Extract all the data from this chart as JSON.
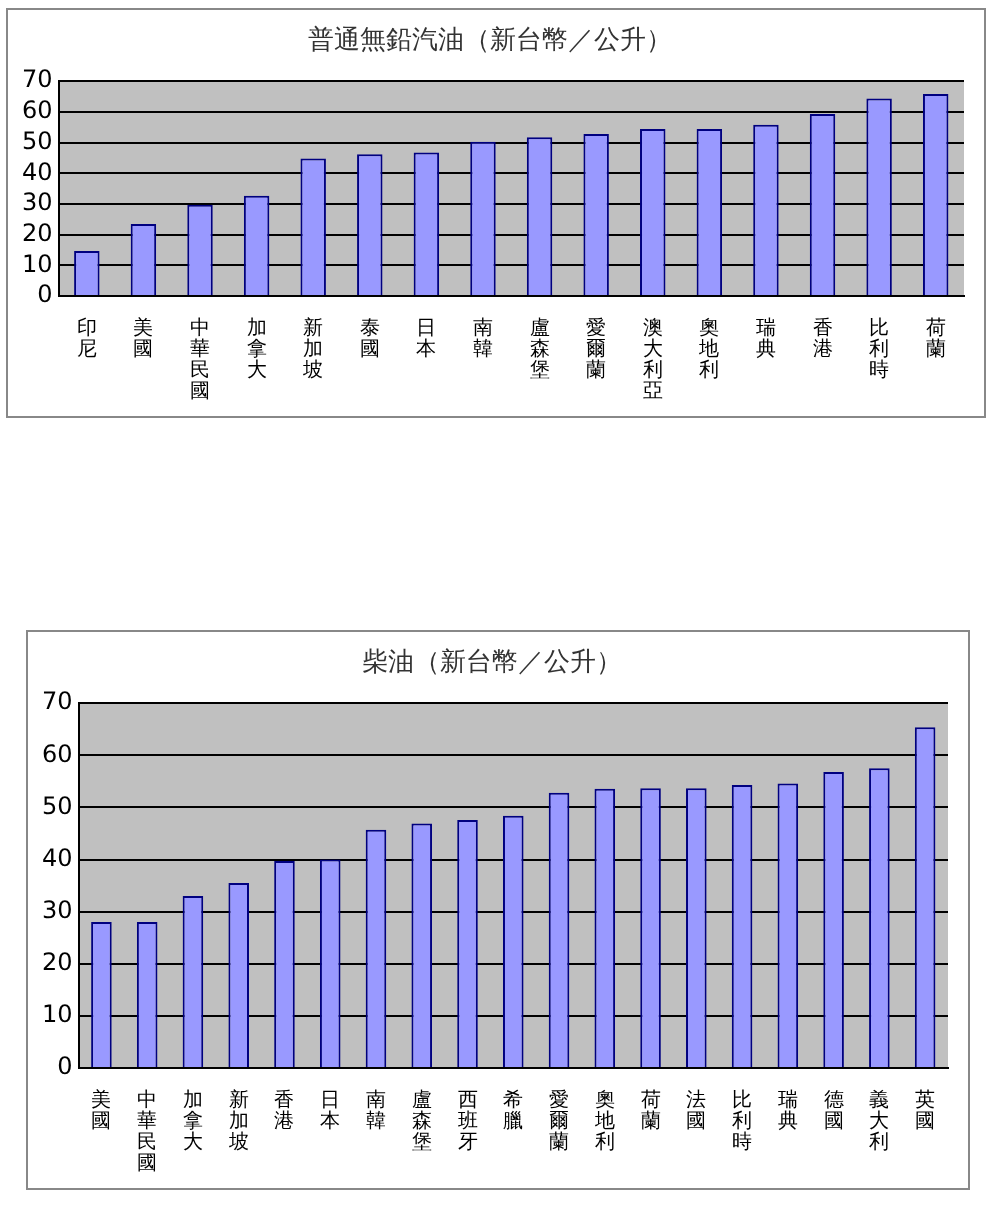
{
  "chart_data": [
    {
      "type": "bar",
      "title": "普通無鉛汽油（新台幣／公升）",
      "categories": [
        "印尼",
        "美國",
        "中華民國",
        "加拿大",
        "新加坡",
        "泰國",
        "日本",
        "南韓",
        "盧森堡",
        "愛爾蘭",
        "澳大利亞",
        "奧地利",
        "瑞典",
        "香港",
        "比利時",
        "荷蘭"
      ],
      "values": [
        14.7,
        23.5,
        29.7,
        32.7,
        44.8,
        46.2,
        46.8,
        50.3,
        51.7,
        52.8,
        54.4,
        54.4,
        55.8,
        59.3,
        64.4,
        65.8
      ],
      "color": "#9999ff",
      "ylim": [
        0,
        70
      ],
      "yticks": [
        0,
        10,
        20,
        30,
        40,
        50,
        60,
        70
      ],
      "grid": "y"
    },
    {
      "type": "bar",
      "title": "柴油（新台幣／公升）",
      "categories": [
        "美國",
        "中華民國",
        "加拿大",
        "新加坡",
        "香港",
        "日本",
        "南韓",
        "盧森堡",
        "西班牙",
        "希臘",
        "愛爾蘭",
        "奧地利",
        "荷蘭",
        "法國",
        "比利時",
        "瑞典",
        "德國",
        "義大利",
        "英國"
      ],
      "values": [
        28,
        28,
        33,
        35.5,
        39.7,
        40,
        45.7,
        46.9,
        47.6,
        48.4,
        52.8,
        53.6,
        53.7,
        53.7,
        54.3,
        54.6,
        56.8,
        57.5,
        65.4
      ],
      "color": "#9999ff",
      "ylim": [
        0,
        70
      ],
      "yticks": [
        0,
        10,
        20,
        30,
        40,
        50,
        60,
        70
      ],
      "grid": "y"
    }
  ]
}
